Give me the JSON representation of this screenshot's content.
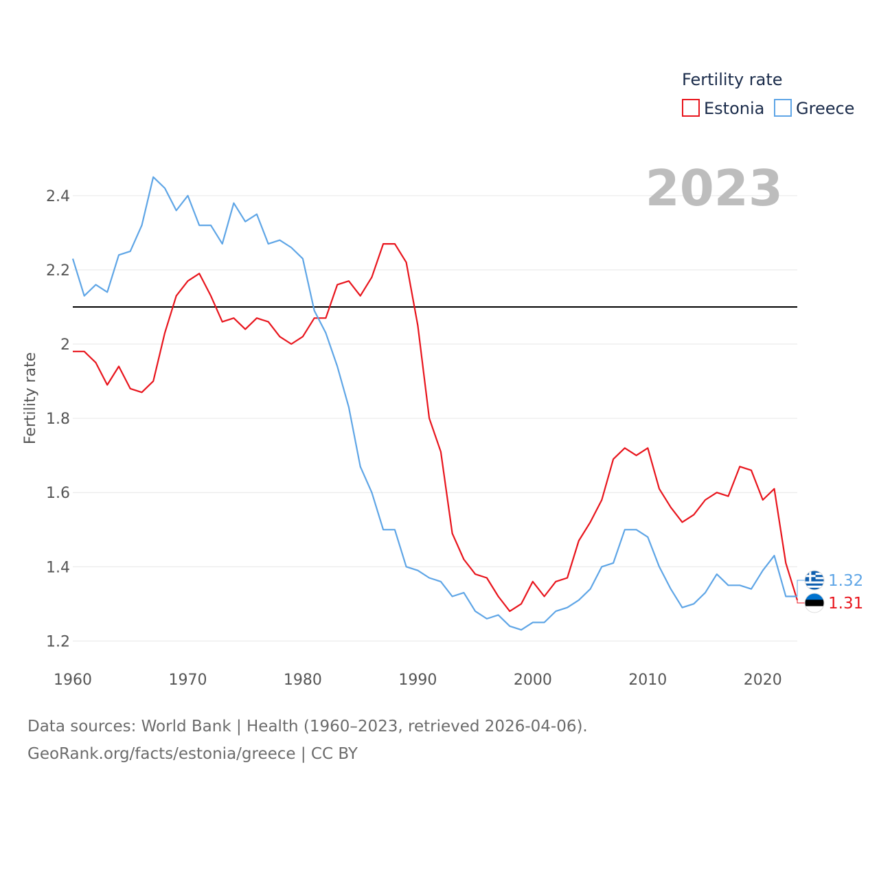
{
  "chart_data": {
    "type": "line",
    "ylabel": "Fertility rate",
    "xlabel": "",
    "xlim": [
      1960,
      2023
    ],
    "ylim": [
      1.16,
      2.52
    ],
    "xticks": [
      1960,
      1970,
      1980,
      1990,
      2000,
      2010,
      2020
    ],
    "x_tick_labels": [
      "1960",
      "1970",
      "1980",
      "1990",
      "2000",
      "2010",
      "2020"
    ],
    "yticks": [
      1.2,
      1.4,
      1.6,
      1.8,
      2.0,
      2.2,
      2.4
    ],
    "y_tick_labels": [
      "1.2",
      "1.4",
      "1.6",
      "1.8",
      "2",
      "2.2",
      "2.4"
    ],
    "grid": true,
    "reference_line": 2.1,
    "current_year": "2023",
    "legend": {
      "title": "Fertility rate",
      "position": "top-right"
    },
    "x": [
      1960,
      1961,
      1962,
      1963,
      1964,
      1965,
      1966,
      1967,
      1968,
      1969,
      1970,
      1971,
      1972,
      1973,
      1974,
      1975,
      1976,
      1977,
      1978,
      1979,
      1980,
      1981,
      1982,
      1983,
      1984,
      1985,
      1986,
      1987,
      1988,
      1989,
      1990,
      1991,
      1992,
      1993,
      1994,
      1995,
      1996,
      1997,
      1998,
      1999,
      2000,
      2001,
      2002,
      2003,
      2004,
      2005,
      2006,
      2007,
      2008,
      2009,
      2010,
      2011,
      2012,
      2013,
      2014,
      2015,
      2016,
      2017,
      2018,
      2019,
      2020,
      2021,
      2022,
      2023
    ],
    "series": [
      {
        "name": "Estonia",
        "color": "#e8141c",
        "end_label": "1.31",
        "flag_colors": [
          "#0072ce",
          "#000000",
          "#ffffff"
        ],
        "values": [
          1.98,
          1.98,
          1.95,
          1.89,
          1.94,
          1.88,
          1.87,
          1.9,
          2.03,
          2.13,
          2.17,
          2.19,
          2.13,
          2.06,
          2.07,
          2.04,
          2.07,
          2.06,
          2.02,
          2.0,
          2.02,
          2.07,
          2.07,
          2.16,
          2.17,
          2.13,
          2.18,
          2.27,
          2.27,
          2.22,
          2.05,
          1.8,
          1.71,
          1.49,
          1.42,
          1.38,
          1.37,
          1.32,
          1.28,
          1.3,
          1.36,
          1.32,
          1.36,
          1.37,
          1.47,
          1.52,
          1.58,
          1.69,
          1.72,
          1.7,
          1.72,
          1.61,
          1.56,
          1.52,
          1.54,
          1.58,
          1.6,
          1.59,
          1.67,
          1.66,
          1.58,
          1.61,
          1.41,
          1.31
        ]
      },
      {
        "name": "Greece",
        "color": "#5ea5e6",
        "end_label": "1.32",
        "flag_colors": [
          "#0d5eaf",
          "#ffffff"
        ],
        "values": [
          2.23,
          2.13,
          2.16,
          2.14,
          2.24,
          2.25,
          2.32,
          2.45,
          2.42,
          2.36,
          2.4,
          2.32,
          2.32,
          2.27,
          2.38,
          2.33,
          2.35,
          2.27,
          2.28,
          2.26,
          2.23,
          2.09,
          2.03,
          1.94,
          1.83,
          1.67,
          1.6,
          1.5,
          1.5,
          1.4,
          1.39,
          1.37,
          1.36,
          1.32,
          1.33,
          1.28,
          1.26,
          1.27,
          1.24,
          1.23,
          1.25,
          1.25,
          1.28,
          1.29,
          1.31,
          1.34,
          1.4,
          1.41,
          1.5,
          1.5,
          1.48,
          1.4,
          1.34,
          1.29,
          1.3,
          1.33,
          1.38,
          1.35,
          1.35,
          1.34,
          1.39,
          1.43,
          1.32,
          1.32
        ]
      }
    ]
  },
  "footer": {
    "sources_line": "Data sources: World Bank | Health (1960–2023, retrieved 2026-04-06).",
    "attribution_line": "GeoRank.org/facts/estonia/greece | CC BY"
  }
}
